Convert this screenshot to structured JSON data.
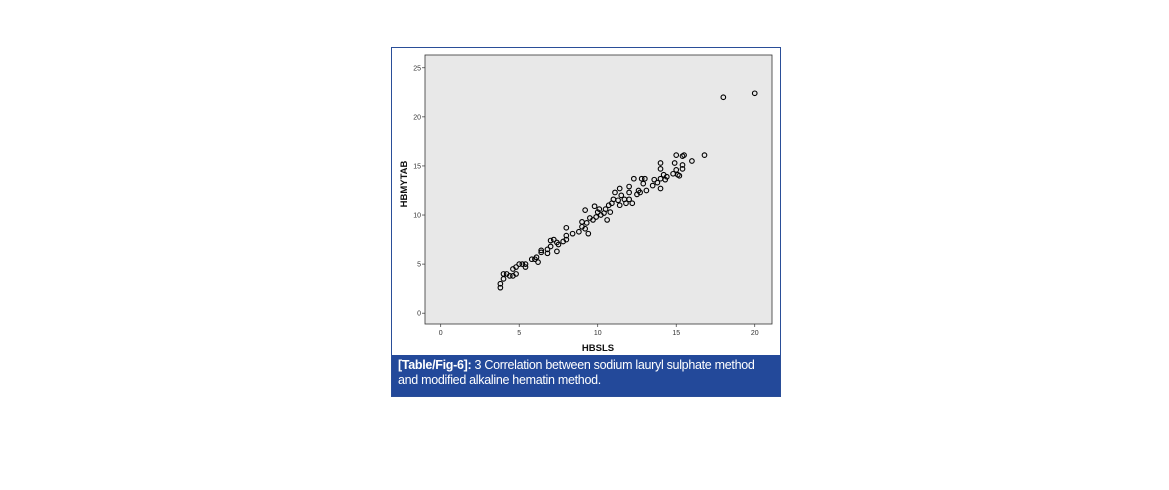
{
  "caption": {
    "label": "[Table/Fig-6]:",
    "text": " 3 Correlation between sodium lauryl sulphate method and modified alkaline hematin method."
  },
  "colors": {
    "plot_bg": "#e8e8e8",
    "caption_bg": "#23499a",
    "marker": "#000000"
  },
  "chart_data": {
    "type": "scatter",
    "title": "",
    "xlabel": "HBSLS",
    "ylabel": "HBMYTAB",
    "xlim": [
      -1,
      21.1
    ],
    "ylim": [
      -1.1,
      26.3
    ],
    "xticks": [
      0,
      5,
      10,
      15,
      20
    ],
    "yticks": [
      0,
      5,
      10,
      15,
      20,
      25
    ],
    "grid": false,
    "marker": "hollow-circle",
    "points": [
      [
        3.8,
        2.6
      ],
      [
        3.8,
        3.0
      ],
      [
        4.0,
        3.5
      ],
      [
        4.0,
        4.0
      ],
      [
        4.2,
        4.0
      ],
      [
        4.4,
        3.8
      ],
      [
        4.6,
        3.8
      ],
      [
        4.6,
        4.5
      ],
      [
        4.8,
        4.7
      ],
      [
        4.8,
        4.0
      ],
      [
        5.0,
        5.0
      ],
      [
        5.2,
        5.0
      ],
      [
        5.4,
        5.0
      ],
      [
        5.4,
        4.7
      ],
      [
        5.8,
        5.5
      ],
      [
        6.0,
        5.5
      ],
      [
        6.1,
        5.7
      ],
      [
        6.2,
        5.2
      ],
      [
        6.4,
        6.2
      ],
      [
        6.4,
        6.4
      ],
      [
        6.8,
        6.1
      ],
      [
        6.8,
        6.5
      ],
      [
        7.0,
        6.8
      ],
      [
        7.0,
        7.4
      ],
      [
        7.2,
        7.5
      ],
      [
        7.4,
        7.2
      ],
      [
        7.4,
        6.3
      ],
      [
        7.5,
        7.0
      ],
      [
        7.8,
        7.3
      ],
      [
        8.0,
        7.5
      ],
      [
        8.0,
        7.9
      ],
      [
        8.0,
        8.7
      ],
      [
        8.4,
        8.1
      ],
      [
        8.8,
        8.3
      ],
      [
        9.0,
        8.8
      ],
      [
        9.0,
        9.3
      ],
      [
        9.2,
        10.5
      ],
      [
        9.2,
        8.6
      ],
      [
        9.3,
        9.2
      ],
      [
        9.4,
        8.1
      ],
      [
        9.5,
        9.7
      ],
      [
        9.7,
        9.5
      ],
      [
        9.8,
        10.9
      ],
      [
        9.9,
        9.8
      ],
      [
        10.0,
        10.3
      ],
      [
        10.1,
        10.6
      ],
      [
        10.2,
        10.0
      ],
      [
        10.4,
        10.2
      ],
      [
        10.5,
        10.6
      ],
      [
        10.6,
        9.5
      ],
      [
        10.7,
        11.0
      ],
      [
        10.8,
        10.3
      ],
      [
        10.9,
        11.2
      ],
      [
        11.0,
        11.6
      ],
      [
        11.1,
        12.3
      ],
      [
        11.3,
        11.5
      ],
      [
        11.4,
        12.7
      ],
      [
        11.4,
        11.0
      ],
      [
        11.5,
        12.0
      ],
      [
        11.7,
        11.6
      ],
      [
        11.8,
        11.2
      ],
      [
        12.0,
        12.3
      ],
      [
        12.0,
        12.9
      ],
      [
        12.0,
        11.6
      ],
      [
        12.2,
        11.2
      ],
      [
        12.3,
        13.7
      ],
      [
        12.5,
        12.1
      ],
      [
        12.6,
        12.5
      ],
      [
        12.7,
        12.3
      ],
      [
        12.8,
        13.7
      ],
      [
        12.9,
        13.2
      ],
      [
        13.0,
        13.7
      ],
      [
        13.1,
        12.5
      ],
      [
        13.5,
        13.0
      ],
      [
        13.6,
        13.6
      ],
      [
        13.8,
        13.3
      ],
      [
        14.0,
        15.3
      ],
      [
        14.0,
        14.7
      ],
      [
        14.0,
        12.7
      ],
      [
        14.0,
        13.7
      ],
      [
        14.2,
        14.1
      ],
      [
        14.3,
        13.6
      ],
      [
        14.4,
        13.9
      ],
      [
        14.8,
        14.2
      ],
      [
        15.0,
        16.1
      ],
      [
        14.9,
        15.3
      ],
      [
        15.0,
        14.6
      ],
      [
        15.1,
        14.1
      ],
      [
        15.2,
        14.0
      ],
      [
        15.4,
        15.1
      ],
      [
        15.4,
        14.7
      ],
      [
        15.4,
        16.0
      ],
      [
        15.5,
        16.1
      ],
      [
        16.0,
        15.5
      ],
      [
        16.8,
        16.1
      ],
      [
        18.0,
        22.0
      ],
      [
        20.0,
        22.4
      ]
    ]
  }
}
